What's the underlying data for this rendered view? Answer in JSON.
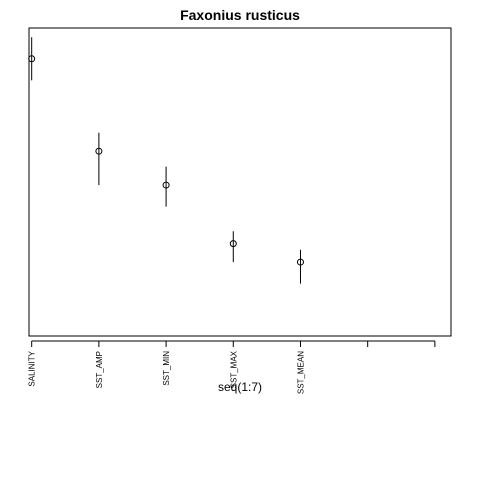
{
  "chart_data": {
    "type": "scatter",
    "title": "Faxonius rusticus",
    "xlabel": "seq(1:7)",
    "ylabel": "",
    "categories": [
      "SALINITY",
      "SST_AMP",
      "SST_MIN",
      "SST_MAX",
      "SST_MEAN",
      "",
      ""
    ],
    "x": [
      1,
      2,
      3,
      4,
      5
    ],
    "values": [
      0.9,
      0.6,
      0.49,
      0.3,
      0.24
    ],
    "error_low": [
      0.83,
      0.49,
      0.42,
      0.24,
      0.17
    ],
    "error_high": [
      0.97,
      0.66,
      0.55,
      0.34,
      0.28
    ],
    "xlim": [
      0.96,
      7.24
    ],
    "ylim": [
      0,
      1
    ],
    "grid": false,
    "legend": "none"
  }
}
